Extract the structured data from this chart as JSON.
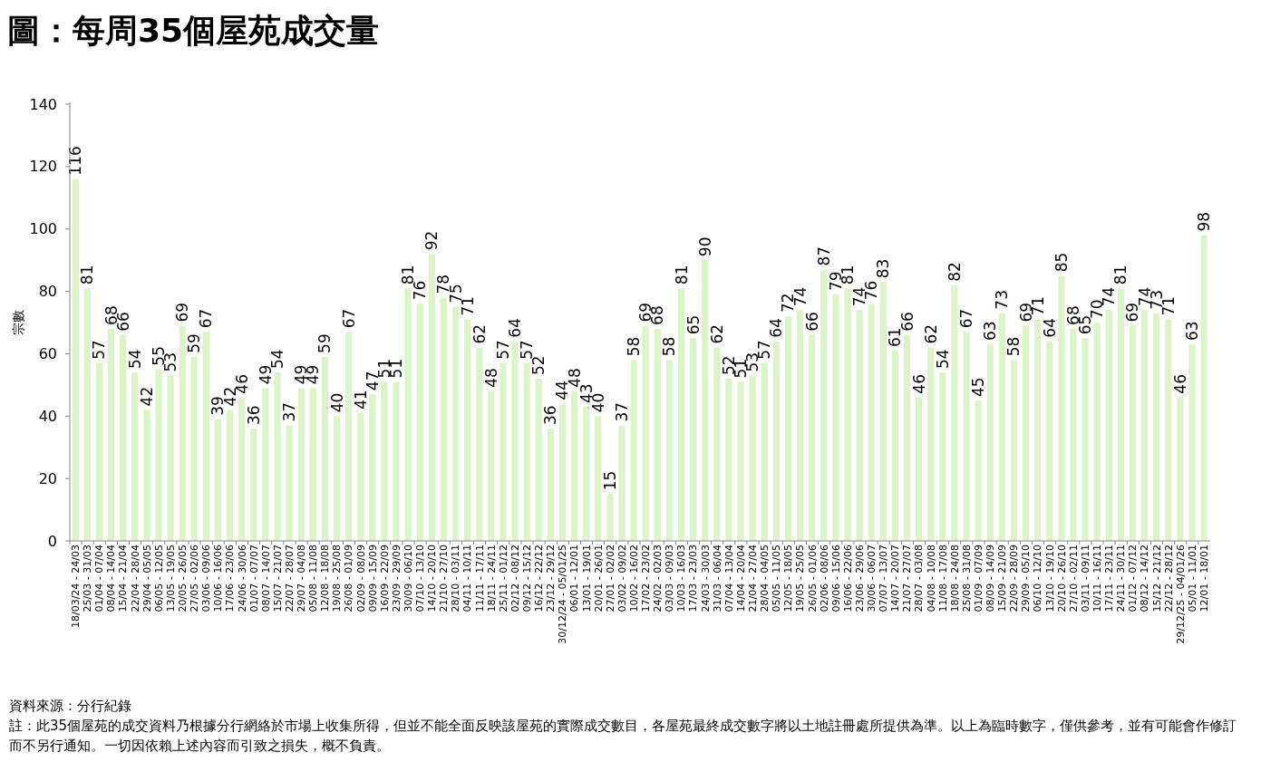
{
  "chart_data": {
    "type": "bar",
    "title": "圖：每周35個屋苑成交量",
    "ylabel": "宗數",
    "categories": [
      "18/03/24 - 24/03",
      "25/03 - 31/03",
      "01/04 - 07/04",
      "08/04 - 14/04",
      "15/04 - 21/04",
      "22/04 - 28/04",
      "29/04 - 05/05",
      "06/05 - 12/05",
      "13/05 - 19/05",
      "20/05 - 26/05",
      "27/05 - 02/06",
      "03/06 - 09/06",
      "10/06 - 16/06",
      "17/06 - 23/06",
      "24/06 - 30/06",
      "01/07 - 07/07",
      "08/07 - 14/07",
      "15/07 - 21/07",
      "22/07 - 28/07",
      "29/07 - 04/08",
      "05/08 - 11/08",
      "12/08 - 18/08",
      "19/08 - 25/08",
      "26/08 - 01/09",
      "02/09 - 08/09",
      "09/09 - 15/09",
      "16/09 - 22/09",
      "23/09 - 29/09",
      "30/09 - 06/10",
      "07/10 - 13/10",
      "14/10 - 20/10",
      "21/10 - 27/10",
      "28/10 - 03/11",
      "04/11 - 10/11",
      "11/11 - 17/11",
      "18/11 - 24/11",
      "25/11 - 01/12",
      "02/12 - 08/12",
      "09/12 - 15/12",
      "16/12 - 22/12",
      "23/12 - 29/12",
      "30/12/24 - 05/01/25",
      "06/01 - 12/01",
      "13/01 - 19/01",
      "20/01 - 26/01",
      "27/01 - 02/02",
      "03/02 - 09/02",
      "10/02 - 16/02",
      "17/02 - 23/02",
      "24/02 - 02/03",
      "03/03 - 09/03",
      "10/03 - 16/03",
      "17/03 - 23/03",
      "24/03 - 30/03",
      "31/03 - 06/04",
      "07/04 - 13/04",
      "14/04 - 20/04",
      "21/04 - 27/04",
      "28/04 - 04/05",
      "05/05 - 11/05",
      "12/05 - 18/05",
      "19/05 - 25/05",
      "26/05 - 01/06",
      "02/06 - 08/06",
      "09/06 - 15/06",
      "16/06 - 22/06",
      "23/06 - 29/06",
      "30/06 - 06/07",
      "07/07 - 13/07",
      "14/07 - 20/07",
      "21/07 - 27/07",
      "28/07 - 03/08",
      "04/08 - 10/08",
      "11/08 - 17/08",
      "18/08 - 24/08",
      "25/08 - 31/08",
      "01/09 - 07/09",
      "08/09 - 14/09",
      "15/09 - 21/09",
      "22/09 - 28/09",
      "29/09 - 05/10",
      "06/10 - 12/10",
      "13/10 - 19/10",
      "20/10 - 26/10",
      "27/10 - 02/11",
      "03/11 - 09/11",
      "10/11 - 16/11",
      "17/11 - 23/11",
      "24/11 - 30/11",
      "01/12 - 07/12",
      "08/12 - 14/12",
      "15/12 - 21/12",
      "22/12 - 28/12",
      "29/12/25 - 04/01/26",
      "05/01 - 11/01",
      "12/01 - 18/01"
    ],
    "values": [
      116,
      81,
      57,
      68,
      66,
      54,
      42,
      55,
      53,
      69,
      59,
      67,
      39,
      42,
      46,
      36,
      49,
      54,
      37,
      49,
      49,
      59,
      40,
      67,
      41,
      47,
      51,
      51,
      81,
      76,
      92,
      78,
      75,
      71,
      62,
      48,
      57,
      64,
      57,
      52,
      36,
      44,
      48,
      43,
      40,
      15,
      37,
      58,
      69,
      68,
      58,
      81,
      65,
      90,
      62,
      52,
      51,
      53,
      57,
      64,
      72,
      74,
      66,
      87,
      79,
      81,
      74,
      76,
      83,
      61,
      66,
      46,
      62,
      54,
      82,
      67,
      45,
      63,
      73,
      58,
      69,
      71,
      64,
      85,
      68,
      65,
      70,
      74,
      81,
      69,
      74,
      73,
      71,
      46,
      63,
      98
    ],
    "color": "#dcf5c8",
    "ylim": [
      0,
      140
    ],
    "yticks": [
      0,
      20,
      40,
      60,
      80,
      100,
      120,
      140
    ],
    "data_labels": true,
    "annotations": [
      "資料來源：分行紀錄",
      "註：此35個屋苑的成交資料乃根據分行網絡於市場上收集所得，但並不能全面反映該屋苑的實際成交數目，各屋苑最終成交數字將以土地註冊處所提供為準。以上為臨時數字，僅供參考，並有可能會作修訂而不另行通知。一切因依賴上述內容而引致之損失，概不負責。"
    ]
  }
}
